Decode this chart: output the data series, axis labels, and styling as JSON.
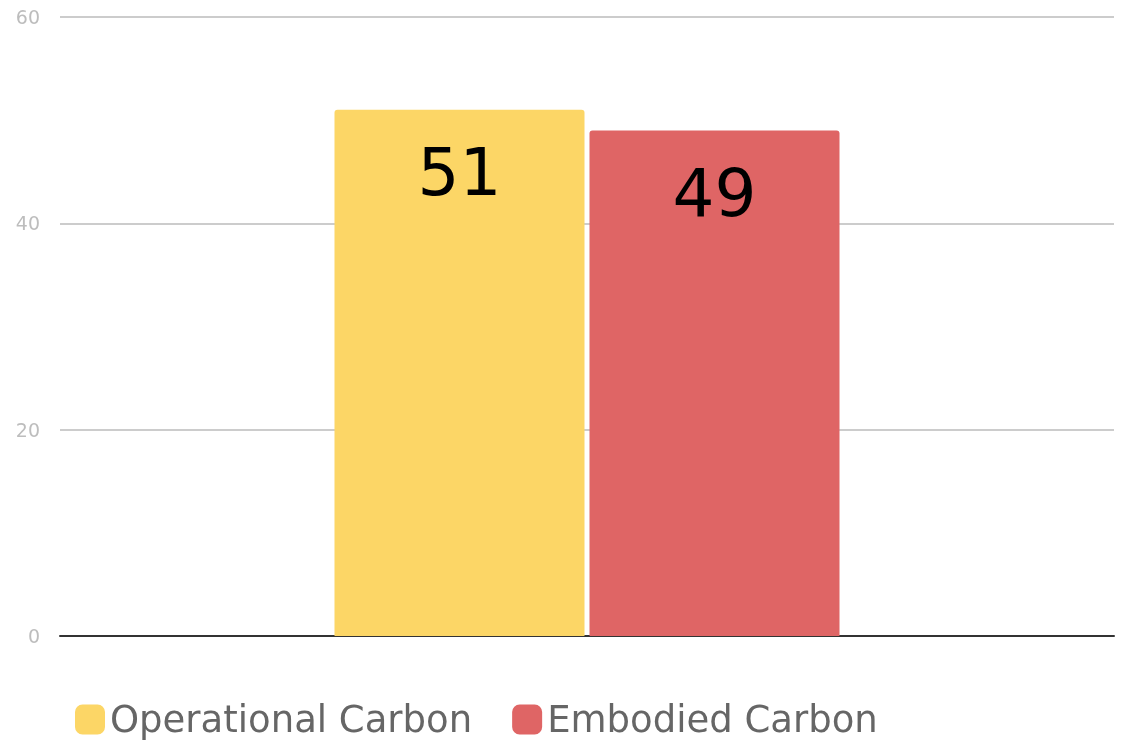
{
  "chart_data": {
    "type": "bar",
    "categories": [
      null
    ],
    "series": [
      {
        "name": "Operational Carbon",
        "color": "#fcd666",
        "values": [
          51
        ]
      },
      {
        "name": "Embodied Carbon",
        "color": "#df6565",
        "values": [
          49
        ]
      }
    ],
    "ylim": [
      0,
      60
    ],
    "yticks": [
      0,
      20,
      40,
      60
    ],
    "grid": "y",
    "legend": "bottom",
    "data_labels": true
  }
}
